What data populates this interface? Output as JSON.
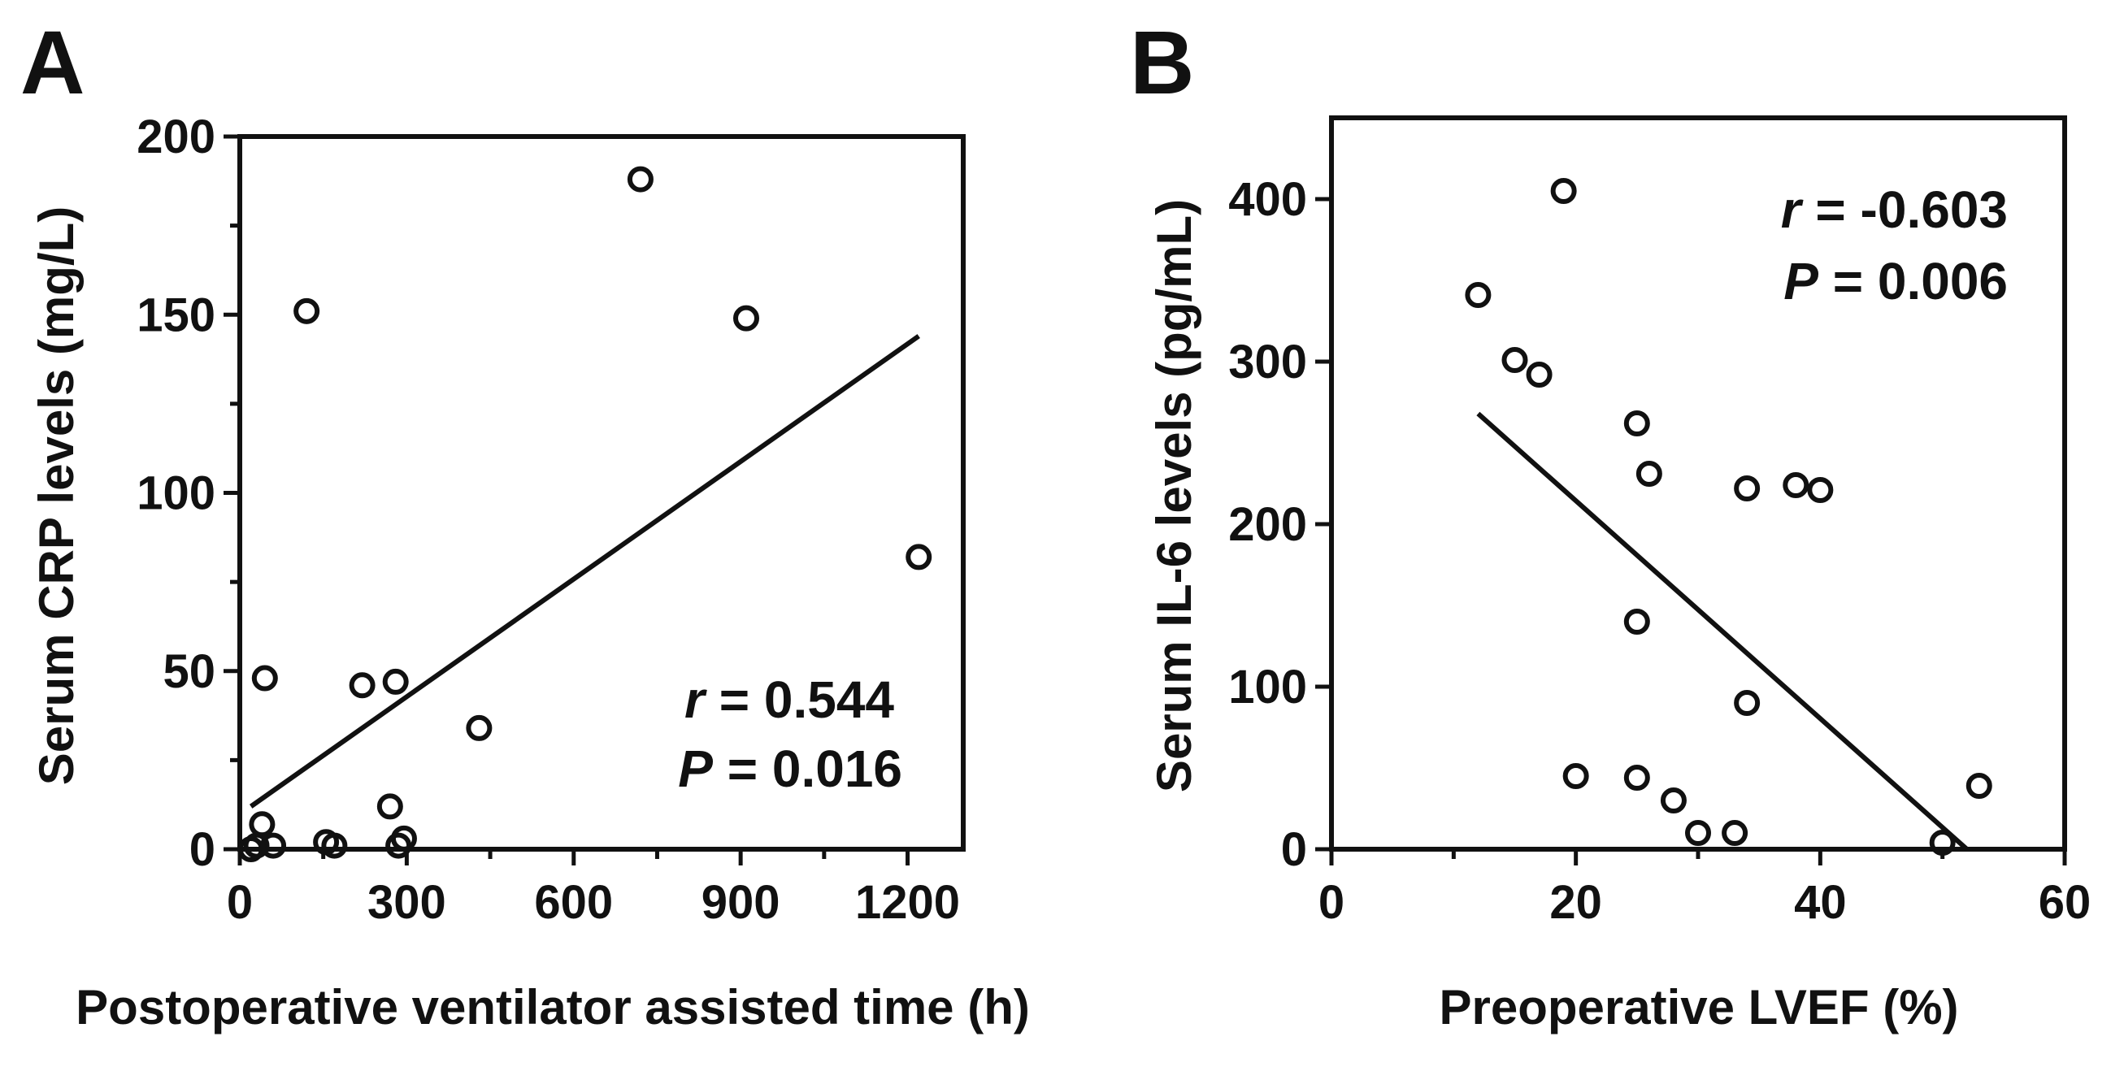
{
  "chart_data": [
    {
      "panel": "A",
      "type": "scatter",
      "xlabel": "Postoperative ventilator assisted time (h)",
      "ylabel": "Serum CRP levels (mg/L)",
      "xlim": [
        0,
        1300
      ],
      "ylim": [
        0,
        200
      ],
      "xticks": [
        0,
        300,
        600,
        900,
        1200
      ],
      "xminor": [
        150,
        450,
        750,
        1050
      ],
      "yticks": [
        0,
        50,
        100,
        150,
        200
      ],
      "yminor": [
        25,
        75,
        125,
        175
      ],
      "points": [
        [
          20,
          0
        ],
        [
          30,
          1
        ],
        [
          40,
          7
        ],
        [
          60,
          1
        ],
        [
          45,
          48
        ],
        [
          120,
          151
        ],
        [
          155,
          2
        ],
        [
          170,
          1
        ],
        [
          220,
          46
        ],
        [
          270,
          12
        ],
        [
          280,
          47
        ],
        [
          285,
          1
        ],
        [
          295,
          3
        ],
        [
          430,
          34
        ],
        [
          720,
          188
        ],
        [
          910,
          149
        ],
        [
          1220,
          82
        ]
      ],
      "fit": {
        "x": [
          20,
          1220
        ],
        "y": [
          12,
          144
        ]
      },
      "annotation": {
        "r_label": "r",
        "r_value": " = 0.544",
        "p_label": "P",
        "p_value": " = 0.016"
      }
    },
    {
      "panel": "B",
      "type": "scatter",
      "xlabel": "Preoperative LVEF (%)",
      "ylabel": "Serum IL-6 levels (pg/mL)",
      "xlim": [
        0,
        60
      ],
      "ylim": [
        0,
        450
      ],
      "xticks": [
        0,
        20,
        40,
        60
      ],
      "xminor": [
        10,
        30,
        50
      ],
      "yticks": [
        0,
        100,
        200,
        300,
        400
      ],
      "yminor": [],
      "points": [
        [
          12,
          341
        ],
        [
          15,
          301
        ],
        [
          17,
          292
        ],
        [
          19,
          405
        ],
        [
          20,
          45
        ],
        [
          25,
          262
        ],
        [
          25,
          140
        ],
        [
          25,
          44
        ],
        [
          26,
          231
        ],
        [
          28,
          30
        ],
        [
          30,
          10
        ],
        [
          33,
          10
        ],
        [
          34,
          222
        ],
        [
          34,
          90
        ],
        [
          38,
          224
        ],
        [
          40,
          221
        ],
        [
          50,
          4
        ],
        [
          53,
          39
        ]
      ],
      "fit": {
        "x": [
          12,
          52
        ],
        "y": [
          268,
          0
        ]
      },
      "annotation": {
        "r_label": "r",
        "r_value": " = -0.603",
        "p_label": "P",
        "p_value": " = 0.006"
      }
    }
  ]
}
